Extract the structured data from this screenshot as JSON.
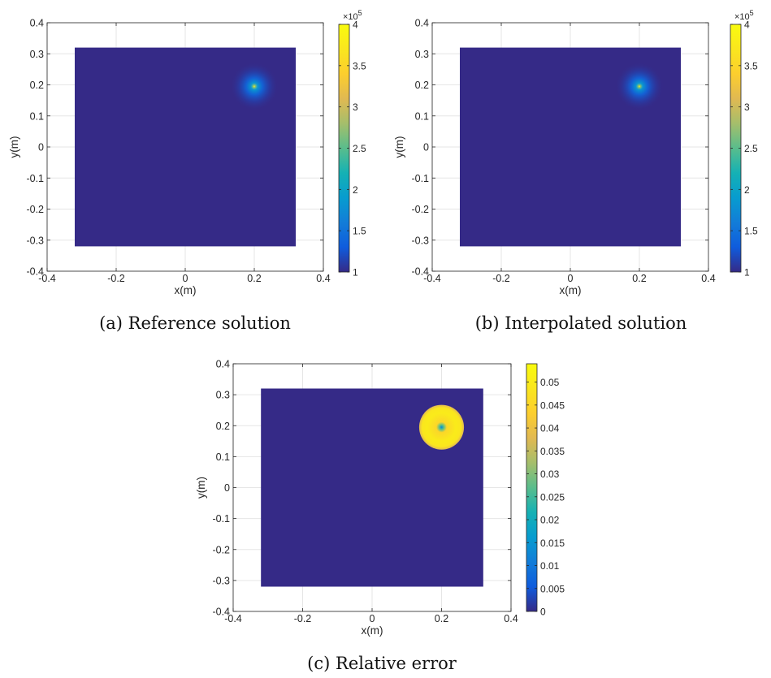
{
  "figure": {
    "panels": [
      {
        "caption_tag": "(a)",
        "caption_text": "Reference solution",
        "colormap": "parula",
        "chart_data": {
          "type": "heatmap",
          "xlabel": "x(m)",
          "ylabel": "y(m)",
          "xlim": [
            -0.4,
            0.4
          ],
          "ylim": [
            -0.4,
            0.4
          ],
          "xticks": [
            "-0.4",
            "-0.2",
            "0",
            "0.2",
            "0.4"
          ],
          "yticks": [
            "-0.4",
            "-0.3",
            "-0.2",
            "-0.1",
            "0",
            "0.1",
            "0.2",
            "0.3",
            "0.4"
          ],
          "grid": true,
          "domain": {
            "xmin": -0.32,
            "xmax": 0.32,
            "ymin": -0.32,
            "ymax": 0.32
          },
          "background_value": 100000,
          "source": {
            "x": 0.2,
            "y": 0.195,
            "shape": "gaussian",
            "radius": 0.07,
            "peak": 400000
          },
          "colorbar": {
            "min": 100000,
            "max": 400000,
            "ticks": [
              "1",
              "1.5",
              "2",
              "2.5",
              "3",
              "3.5",
              "4"
            ],
            "tick_values": [
              1,
              1.5,
              2,
              2.5,
              3,
              3.5,
              4
            ],
            "range": [
              1,
              4
            ],
            "multiplier": "×10",
            "exponent": "5"
          }
        }
      },
      {
        "caption_tag": "(b)",
        "caption_text": "Interpolated solution",
        "colormap": "parula",
        "chart_data": {
          "type": "heatmap",
          "xlabel": "x(m)",
          "ylabel": "y(m)",
          "xlim": [
            -0.4,
            0.4
          ],
          "ylim": [
            -0.4,
            0.4
          ],
          "xticks": [
            "-0.4",
            "-0.2",
            "0",
            "0.2",
            "0.4"
          ],
          "yticks": [
            "-0.4",
            "-0.3",
            "-0.2",
            "-0.1",
            "0",
            "0.1",
            "0.2",
            "0.3",
            "0.4"
          ],
          "grid": true,
          "domain": {
            "xmin": -0.32,
            "xmax": 0.32,
            "ymin": -0.32,
            "ymax": 0.32
          },
          "background_value": 100000,
          "source": {
            "x": 0.2,
            "y": 0.195,
            "shape": "gaussian",
            "radius": 0.07,
            "peak": 400000
          },
          "colorbar": {
            "min": 100000,
            "max": 400000,
            "ticks": [
              "1",
              "1.5",
              "2",
              "2.5",
              "3",
              "3.5",
              "4"
            ],
            "tick_values": [
              1,
              1.5,
              2,
              2.5,
              3,
              3.5,
              4
            ],
            "range": [
              1,
              4
            ],
            "multiplier": "×10",
            "exponent": "5"
          }
        }
      },
      {
        "caption_tag": "(c)",
        "caption_text": "Relative error",
        "colormap": "parula",
        "chart_data": {
          "type": "heatmap",
          "xlabel": "x(m)",
          "ylabel": "y(m)",
          "xlim": [
            -0.4,
            0.4
          ],
          "ylim": [
            -0.4,
            0.4
          ],
          "xticks": [
            "-0.4",
            "-0.2",
            "0",
            "0.2",
            "0.4"
          ],
          "yticks": [
            "-0.4",
            "-0.3",
            "-0.2",
            "-0.1",
            "0",
            "0.1",
            "0.2",
            "0.3",
            "0.4"
          ],
          "grid": true,
          "domain": {
            "xmin": -0.32,
            "xmax": 0.32,
            "ymin": -0.32,
            "ymax": 0.32
          },
          "background_value": 0,
          "source": {
            "x": 0.2,
            "y": 0.195,
            "shape": "ring",
            "radius": 0.075,
            "peak": 0.05
          },
          "colorbar": {
            "min": 0,
            "max": 0.054,
            "ticks": [
              "0",
              "0.005",
              "0.01",
              "0.015",
              "0.02",
              "0.025",
              "0.03",
              "0.035",
              "0.04",
              "0.045",
              "0.05"
            ],
            "tick_values": [
              0,
              0.005,
              0.01,
              0.015,
              0.02,
              0.025,
              0.03,
              0.035,
              0.04,
              0.045,
              0.05
            ],
            "range": [
              0,
              0.054
            ],
            "multiplier": "",
            "exponent": ""
          }
        }
      }
    ]
  }
}
